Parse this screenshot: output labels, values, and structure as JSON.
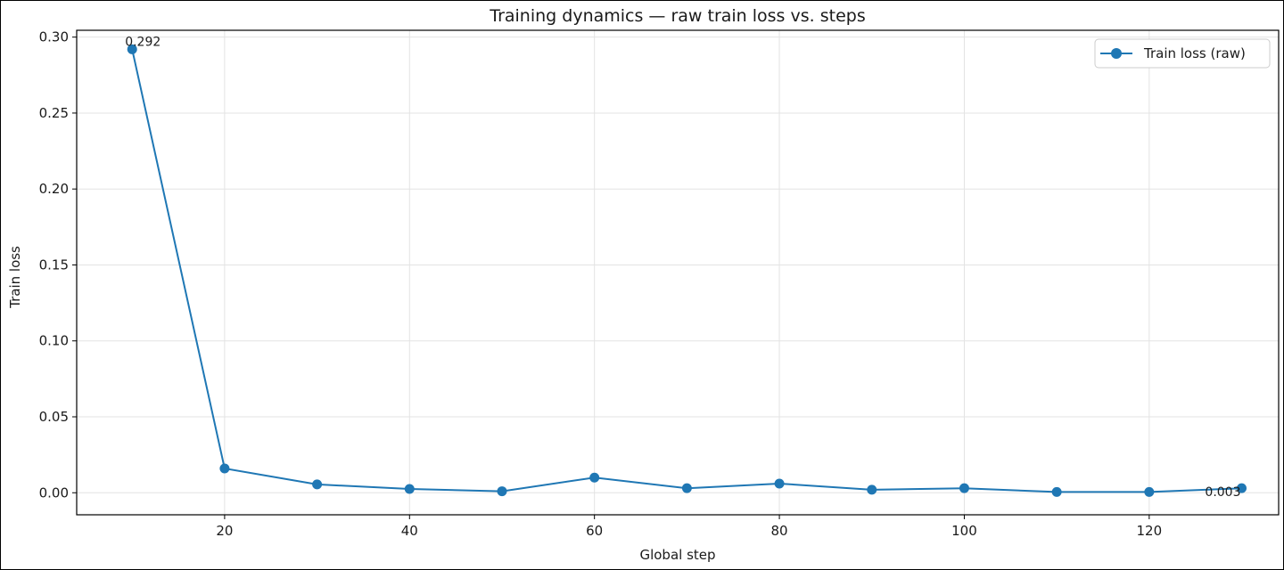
{
  "chart_data": {
    "type": "line",
    "title": "Training dynamics — raw train loss vs. steps",
    "xlabel": "Global step",
    "ylabel": "Train loss",
    "xlim": [
      4,
      134
    ],
    "ylim": [
      -0.0145,
      0.3045
    ],
    "xticks": [
      20,
      40,
      60,
      80,
      100,
      120
    ],
    "xtick_labels": [
      "20",
      "40",
      "60",
      "80",
      "100",
      "120"
    ],
    "yticks": [
      0.0,
      0.05,
      0.1,
      0.15,
      0.2,
      0.25,
      0.3
    ],
    "ytick_labels": [
      "0.00",
      "0.05",
      "0.10",
      "0.15",
      "0.20",
      "0.25",
      "0.30"
    ],
    "grid": true,
    "legend_position": "top-right",
    "series": [
      {
        "name": "Train loss (raw)",
        "color": "#1f77b4",
        "marker": "circle",
        "x": [
          10,
          20,
          30,
          40,
          50,
          60,
          70,
          80,
          90,
          100,
          110,
          120,
          130
        ],
        "y": [
          0.292,
          0.016,
          0.0055,
          0.0025,
          0.001,
          0.01,
          0.003,
          0.006,
          0.002,
          0.003,
          0.0005,
          0.0005,
          0.003
        ]
      }
    ],
    "annotations": [
      {
        "text": "0.292",
        "x": 10,
        "y": 0.292,
        "placement": "above-right"
      },
      {
        "text": "0.003",
        "x": 130,
        "y": 0.003,
        "placement": "below-left"
      }
    ]
  }
}
